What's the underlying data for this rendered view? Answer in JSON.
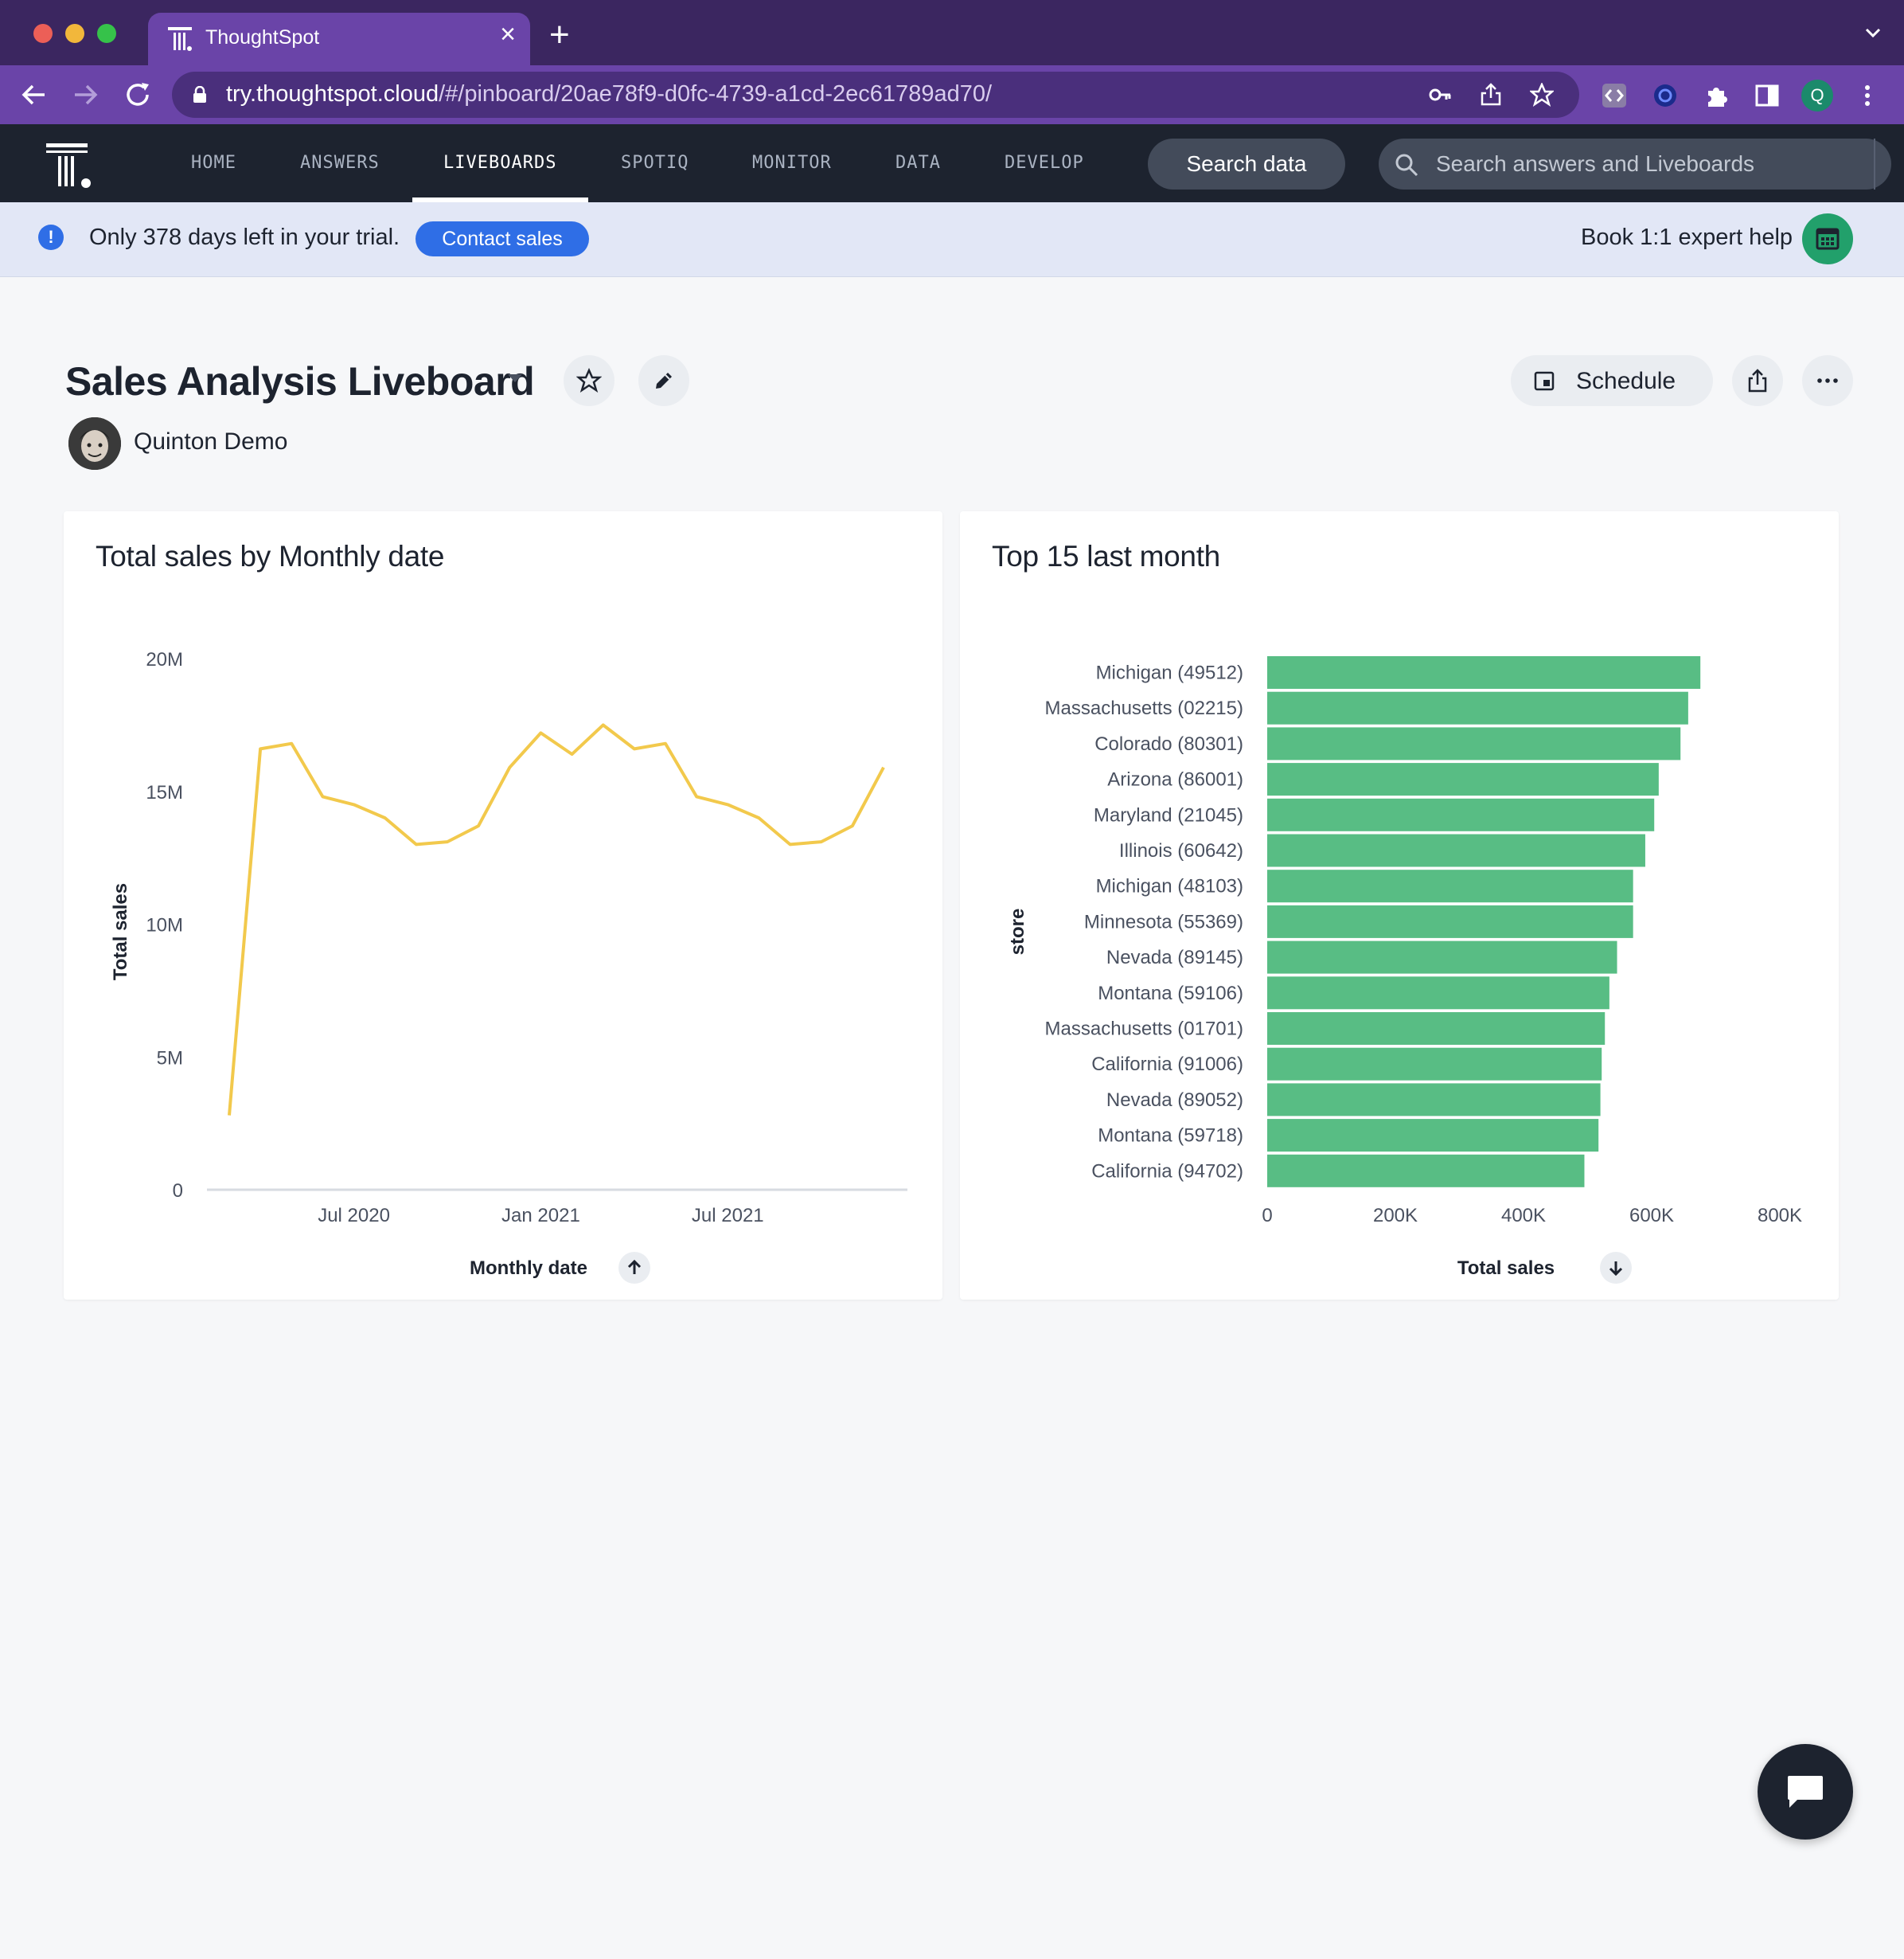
{
  "browser": {
    "tab_title": "ThoughtSpot",
    "url_host": "try.thoughtspot.cloud",
    "url_path": "/#/pinboard/20ae78f9-d0fc-4739-a1cd-2ec61789ad70/",
    "profile_initial": "Q"
  },
  "header": {
    "nav": [
      "HOME",
      "ANSWERS",
      "LIVEBOARDS",
      "SPOTIQ",
      "MONITOR",
      "DATA",
      "DEVELOP"
    ],
    "active_nav": "LIVEBOARDS",
    "search_data_label": "Search data",
    "search_placeholder": "Search answers and Liveboards"
  },
  "banner": {
    "trial_text": "Only 378 days left in your trial.",
    "contact_label": "Contact sales",
    "book_label": "Book 1:1 expert help"
  },
  "liveboard": {
    "title": "Sales Analysis Liveboard",
    "author": "Quinton Demo",
    "schedule_label": "Schedule"
  },
  "colors": {
    "line": "#f2c94c",
    "bar": "#58bd84",
    "accent": "#2f6ee6"
  },
  "chart_data": [
    {
      "type": "line",
      "title": "Total sales by Monthly date",
      "xlabel": "Monthly date",
      "ylabel": "Total sales",
      "x_ticks": [
        "Jul 2020",
        "Jan 2021",
        "Jul 2021"
      ],
      "y_ticks": [
        "20M",
        "15M",
        "10M",
        "5M",
        "0"
      ],
      "ylim": [
        0,
        20000000
      ],
      "x": [
        "2020-03",
        "2020-04",
        "2020-05",
        "2020-06",
        "2020-07",
        "2020-08",
        "2020-09",
        "2020-10",
        "2020-11",
        "2020-12",
        "2021-01",
        "2021-02",
        "2021-03",
        "2021-04",
        "2021-05",
        "2021-06",
        "2021-07",
        "2021-08",
        "2021-09",
        "2021-10",
        "2021-11",
        "2021-12"
      ],
      "values": [
        2800000,
        16600000,
        16800000,
        14800000,
        14500000,
        14000000,
        13000000,
        13100000,
        13700000,
        15900000,
        17200000,
        16400000,
        17500000,
        16600000,
        16800000,
        14800000,
        14500000,
        14000000,
        13000000,
        13100000,
        13700000,
        15900000
      ],
      "sort": "ascending",
      "grid": false
    },
    {
      "type": "bar",
      "orientation": "horizontal",
      "title": "Top 15 last month",
      "xlabel": "Total sales",
      "ylabel": "store",
      "x_ticks": [
        "0",
        "200K",
        "400K",
        "600K",
        "800K"
      ],
      "xlim": [
        0,
        800000
      ],
      "categories": [
        "Michigan (49512)",
        "Massachusetts (02215)",
        "Colorado (80301)",
        "Arizona (86001)",
        "Maryland (21045)",
        "Illinois (60642)",
        "Michigan (48103)",
        "Minnesota (55369)",
        "Nevada (89145)",
        "Montana (59106)",
        "Massachusetts (01701)",
        "California (91006)",
        "Nevada (89052)",
        "Montana (59718)",
        "California (94702)"
      ],
      "values": [
        676000,
        657000,
        645000,
        611000,
        604000,
        590000,
        571000,
        571000,
        546000,
        534000,
        527000,
        522000,
        520000,
        517000,
        495000
      ],
      "sort": "descending"
    }
  ]
}
